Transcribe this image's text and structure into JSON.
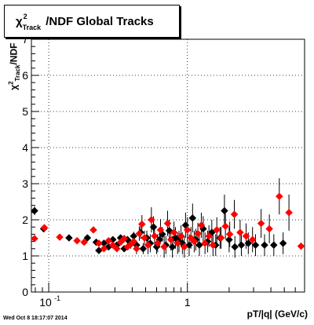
{
  "title": {
    "chi_symbol": "χ",
    "superscript": "2",
    "subscript": "Track",
    "rest": "/NDF  Global Tracks"
  },
  "ylabel": {
    "chi_symbol": "χ",
    "superscript": "2",
    "subscript": "Track",
    "rest": "/NDF"
  },
  "xlabel": "pT/|q| (GeV/c)",
  "datestamp": "Wed Oct  8 18:17:07 2014",
  "colors": {
    "series_black": "#000000",
    "series_red": "#ff0000",
    "grid": "#000000"
  },
  "chart_data": {
    "type": "scatter",
    "x_scale": "log",
    "xlim": [
      0.075,
      7.0
    ],
    "ylim": [
      0,
      7
    ],
    "grid": true,
    "y_ticks": [
      "0",
      "1",
      "2",
      "3",
      "4",
      "5",
      "6",
      "7"
    ],
    "x_tick_labels": [
      {
        "value": 0.1,
        "label": "10",
        "exponent": "-1"
      },
      {
        "value": 1,
        "label": "1",
        "exponent": ""
      }
    ],
    "series": [
      {
        "color": "#000000",
        "points": [
          [
            0.079,
            2.25,
            0.12
          ],
          [
            0.092,
            1.75,
            0.04
          ],
          [
            0.14,
            1.5,
            0.04
          ],
          [
            0.19,
            1.5,
            0.05
          ],
          [
            0.22,
            1.38,
            0.05
          ],
          [
            0.23,
            1.15,
            0.05
          ],
          [
            0.25,
            1.35,
            0.05
          ],
          [
            0.27,
            1.25,
            0.05
          ],
          [
            0.29,
            1.45,
            0.06
          ],
          [
            0.31,
            1.3,
            0.06
          ],
          [
            0.33,
            1.5,
            0.08
          ],
          [
            0.35,
            1.2,
            0.08
          ],
          [
            0.37,
            1.45,
            0.1
          ],
          [
            0.39,
            1.35,
            0.1
          ],
          [
            0.41,
            1.55,
            0.12
          ],
          [
            0.43,
            1.3,
            0.12
          ],
          [
            0.46,
            1.65,
            0.18
          ],
          [
            0.48,
            1.2,
            0.15
          ],
          [
            0.51,
            1.5,
            0.2
          ],
          [
            0.54,
            1.35,
            0.25
          ],
          [
            0.57,
            1.8,
            0.3
          ],
          [
            0.6,
            1.25,
            0.2
          ],
          [
            0.63,
            1.45,
            0.2
          ],
          [
            0.66,
            1.6,
            0.2
          ],
          [
            0.7,
            1.3,
            0.25
          ],
          [
            0.74,
            1.7,
            0.3
          ],
          [
            0.78,
            1.25,
            0.3
          ],
          [
            0.82,
            1.5,
            0.3
          ],
          [
            0.87,
            1.4,
            0.3
          ],
          [
            0.92,
            1.35,
            0.3
          ],
          [
            0.97,
            1.85,
            0.35
          ],
          [
            1.03,
            1.3,
            0.3
          ],
          [
            1.09,
            2.05,
            0.4
          ],
          [
            1.15,
            1.45,
            0.3
          ],
          [
            1.22,
            1.3,
            0.3
          ],
          [
            1.3,
            1.75,
            0.35
          ],
          [
            1.4,
            1.4,
            0.3
          ],
          [
            1.5,
            1.65,
            0.35
          ],
          [
            1.6,
            1.3,
            0.3
          ],
          [
            1.72,
            1.5,
            0.3
          ],
          [
            1.85,
            2.25,
            0.45
          ],
          [
            2.0,
            1.45,
            0.35
          ],
          [
            2.2,
            1.25,
            0.3
          ],
          [
            2.45,
            1.3,
            0.3
          ],
          [
            2.75,
            1.35,
            0.3
          ],
          [
            3.1,
            1.3,
            0.3
          ],
          [
            3.6,
            1.3,
            0.3
          ],
          [
            4.2,
            1.3,
            0.3
          ],
          [
            4.9,
            1.35,
            0.3
          ]
        ]
      },
      {
        "color": "#ff0000",
        "points": [
          [
            0.079,
            1.48,
            0.06
          ],
          [
            0.093,
            1.78,
            0.04
          ],
          [
            0.12,
            1.52,
            0.04
          ],
          [
            0.16,
            1.42,
            0.05
          ],
          [
            0.18,
            1.38,
            0.05
          ],
          [
            0.21,
            1.72,
            0.08
          ],
          [
            0.23,
            1.35,
            0.06
          ],
          [
            0.25,
            1.2,
            0.06
          ],
          [
            0.27,
            1.42,
            0.06
          ],
          [
            0.29,
            1.3,
            0.07
          ],
          [
            0.31,
            1.2,
            0.07
          ],
          [
            0.33,
            1.38,
            0.08
          ],
          [
            0.35,
            1.48,
            0.1
          ],
          [
            0.37,
            1.25,
            0.1
          ],
          [
            0.39,
            1.32,
            0.12
          ],
          [
            0.41,
            1.4,
            0.12
          ],
          [
            0.43,
            1.2,
            0.15
          ],
          [
            0.45,
            1.62,
            0.2
          ],
          [
            0.47,
            1.88,
            0.25
          ],
          [
            0.49,
            1.5,
            0.2
          ],
          [
            0.52,
            1.3,
            0.25
          ],
          [
            0.55,
            2.0,
            0.35
          ],
          [
            0.58,
            1.55,
            0.25
          ],
          [
            0.61,
            1.35,
            0.25
          ],
          [
            0.64,
            1.72,
            0.3
          ],
          [
            0.68,
            1.25,
            0.3
          ],
          [
            0.72,
            1.9,
            0.35
          ],
          [
            0.76,
            1.45,
            0.3
          ],
          [
            0.8,
            1.65,
            0.3
          ],
          [
            0.85,
            1.35,
            0.3
          ],
          [
            0.9,
            1.55,
            0.3
          ],
          [
            0.95,
            1.25,
            0.3
          ],
          [
            1.0,
            1.72,
            0.35
          ],
          [
            1.06,
            1.5,
            0.3
          ],
          [
            1.12,
            1.4,
            0.3
          ],
          [
            1.19,
            1.62,
            0.3
          ],
          [
            1.26,
            1.85,
            0.35
          ],
          [
            1.34,
            1.35,
            0.3
          ],
          [
            1.43,
            1.55,
            0.3
          ],
          [
            1.53,
            1.3,
            0.3
          ],
          [
            1.63,
            1.72,
            0.35
          ],
          [
            1.75,
            1.5,
            0.3
          ],
          [
            1.88,
            1.82,
            0.35
          ],
          [
            2.02,
            1.6,
            0.35
          ],
          [
            2.18,
            2.15,
            0.4
          ],
          [
            2.4,
            1.65,
            0.35
          ],
          [
            2.65,
            1.55,
            0.35
          ],
          [
            2.95,
            1.45,
            0.35
          ],
          [
            3.4,
            1.9,
            0.4
          ],
          [
            3.9,
            1.75,
            0.4
          ],
          [
            4.6,
            2.65,
            0.5
          ],
          [
            5.4,
            2.2,
            0.5
          ],
          [
            6.6,
            1.27,
            0.1
          ]
        ]
      }
    ]
  }
}
